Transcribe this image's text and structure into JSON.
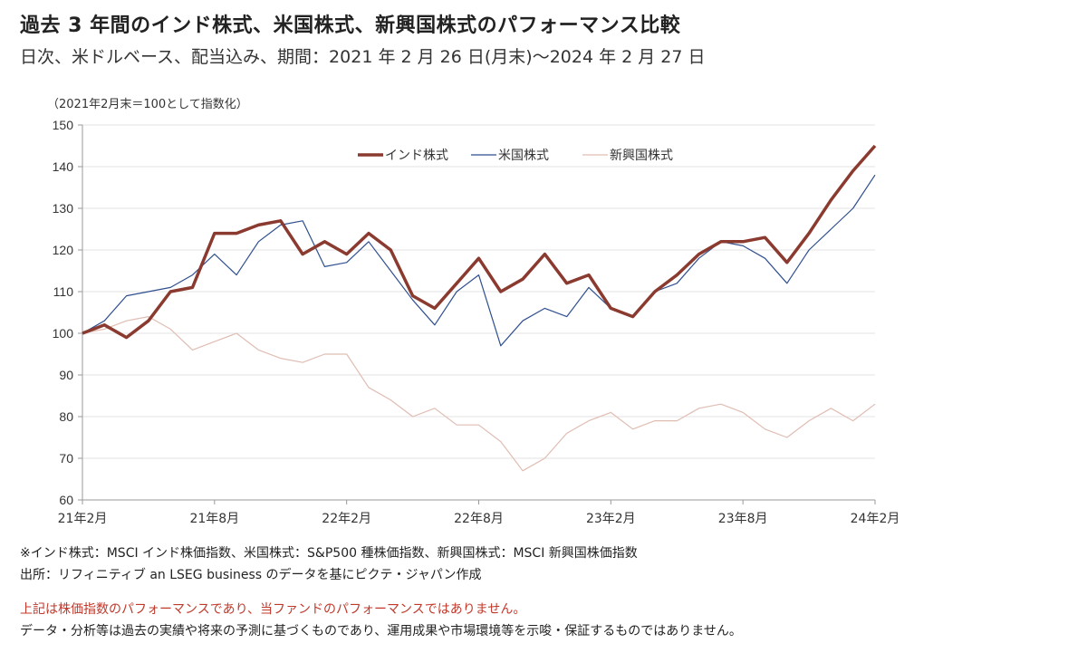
{
  "title": "過去 3 年間のインド株式、米国株式、新興国株式のパフォーマンス比較",
  "subtitle": "日次、米ドルベース、配当込み、期間：2021 年 2 月 26 日(月末)～2024 年 2 月 27 日",
  "notes": {
    "source1": "※インド株式：MSCI インド株価指数、米国株式：S&P500 種株価指数、新興国株式：MSCI 新興国株価指数",
    "source2": "出所：リフィニティブ an LSEG business のデータを基にピクテ・ジャパン作成",
    "warning": "上記は株価指数のパフォーマンスであり、当ファンドのパフォーマンスではありません。",
    "disclaimer": "データ・分析等は過去の実績や将来の予測に基づくものであり、運用成果や市場環境等を示唆・保証するものではありません。"
  },
  "chart_data": {
    "type": "line",
    "ylabel": "（2021年2月末＝100として指数化）",
    "ylim": [
      60,
      150
    ],
    "yticks": [
      60,
      70,
      80,
      90,
      100,
      110,
      120,
      130,
      140,
      150
    ],
    "xticks": [
      "21年2月",
      "21年8月",
      "22年2月",
      "22年8月",
      "23年2月",
      "23年8月",
      "24年2月"
    ],
    "grid": true,
    "legend_position": "top-center",
    "x": [
      "2021-02",
      "2021-03",
      "2021-04",
      "2021-05",
      "2021-06",
      "2021-07",
      "2021-08",
      "2021-09",
      "2021-10",
      "2021-11",
      "2021-12",
      "2022-01",
      "2022-02",
      "2022-03",
      "2022-04",
      "2022-05",
      "2022-06",
      "2022-07",
      "2022-08",
      "2022-09",
      "2022-10",
      "2022-11",
      "2022-12",
      "2023-01",
      "2023-02",
      "2023-03",
      "2023-04",
      "2023-05",
      "2023-06",
      "2023-07",
      "2023-08",
      "2023-09",
      "2023-10",
      "2023-11",
      "2023-12",
      "2024-01",
      "2024-02"
    ],
    "series": [
      {
        "name": "インド株式",
        "color": "#8b3a2f",
        "values": [
          100,
          102,
          99,
          103,
          110,
          111,
          124,
          124,
          126,
          127,
          119,
          122,
          119,
          124,
          120,
          109,
          106,
          112,
          118,
          110,
          113,
          119,
          112,
          114,
          106,
          104,
          110,
          114,
          119,
          122,
          122,
          123,
          117,
          124,
          132,
          139,
          145
        ]
      },
      {
        "name": "米国株式",
        "color": "#2f4f8f",
        "values": [
          100,
          103,
          109,
          110,
          111,
          114,
          119,
          114,
          122,
          126,
          127,
          116,
          117,
          122,
          115,
          108,
          102,
          110,
          114,
          97,
          103,
          106,
          104,
          111,
          106,
          104,
          110,
          112,
          118,
          122,
          121,
          118,
          112,
          120,
          125,
          130,
          138
        ]
      },
      {
        "name": "新興国株式",
        "color": "#dfbdb3",
        "values": [
          100,
          101,
          103,
          104,
          101,
          96,
          98,
          100,
          96,
          94,
          93,
          95,
          95,
          87,
          84,
          80,
          82,
          78,
          78,
          74,
          67,
          70,
          76,
          79,
          81,
          77,
          79,
          79,
          82,
          83,
          81,
          77,
          75,
          79,
          82,
          79,
          83
        ]
      }
    ]
  }
}
